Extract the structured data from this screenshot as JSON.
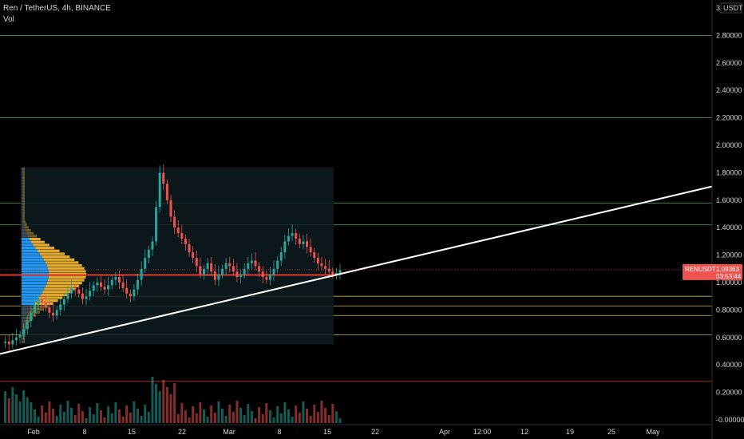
{
  "header": {
    "symbol_title": "Ren / TetherUS, 4h, BINANCE",
    "vol_label": "Vol"
  },
  "price_axis": {
    "currency_label": "USDT",
    "top_tick": "3",
    "ticks": [
      "2.80000",
      "2.60000",
      "2.40000",
      "2.20000",
      "2.00000",
      "1.80000",
      "1.60000",
      "1.40000",
      "1.20000",
      "1.00000",
      "0.80000",
      "0.60000",
      "0.40000",
      "0.20000",
      "-0.00000"
    ]
  },
  "time_axis": {
    "labels": [
      "Feb",
      "8",
      "15",
      "22",
      "Mar",
      "8",
      "15",
      "22",
      "Apr",
      "12:00",
      "12",
      "19",
      "25",
      "May"
    ]
  },
  "price_tag": {
    "ticker": "RENUSDT",
    "price": "1.09363",
    "countdown": "03:53:44"
  },
  "colors": {
    "background": "#000000",
    "up": "#26a69a",
    "down": "#ef5350",
    "green_level": "#4caf50",
    "yellow_level": "#c9b458",
    "red_level": "#e53935",
    "trendline": "#ffffff",
    "vp_blue": "#2196f3",
    "vp_orange": "#e0a82e"
  },
  "chart_data": {
    "type": "candlestick",
    "timeframe": "4h",
    "horizontal_levels": {
      "green": [
        2.8,
        2.2,
        1.58,
        1.42
      ],
      "yellow": [
        0.9,
        0.83,
        0.76,
        0.62
      ],
      "red_poc": 1.055,
      "red_low": 0.28
    },
    "trendline": {
      "start_price": 0.48,
      "end_price": 1.7
    },
    "price_path": [
      0.56,
      0.57,
      0.55,
      0.58,
      0.6,
      0.62,
      0.66,
      0.72,
      0.78,
      0.84,
      0.88,
      0.86,
      0.82,
      0.78,
      0.76,
      0.8,
      0.84,
      0.88,
      0.92,
      0.96,
      0.95,
      0.92,
      0.88,
      0.9,
      0.94,
      0.98,
      1.0,
      0.97,
      0.95,
      0.98,
      1.02,
      1.04,
      1.0,
      0.96,
      0.92,
      0.9,
      0.95,
      1.02,
      1.1,
      1.18,
      1.24,
      1.3,
      1.55,
      1.8,
      1.72,
      1.6,
      1.48,
      1.4,
      1.36,
      1.32,
      1.28,
      1.22,
      1.18,
      1.12,
      1.06,
      1.1,
      1.14,
      1.08,
      1.02,
      1.06,
      1.1,
      1.14,
      1.12,
      1.08,
      1.04,
      1.06,
      1.1,
      1.14,
      1.16,
      1.12,
      1.08,
      1.04,
      1.02,
      1.06,
      1.1,
      1.16,
      1.22,
      1.3,
      1.34,
      1.36,
      1.32,
      1.28,
      1.3,
      1.26,
      1.22,
      1.18,
      1.14,
      1.12,
      1.1,
      1.08,
      1.06,
      1.07,
      1.09
    ]
  }
}
